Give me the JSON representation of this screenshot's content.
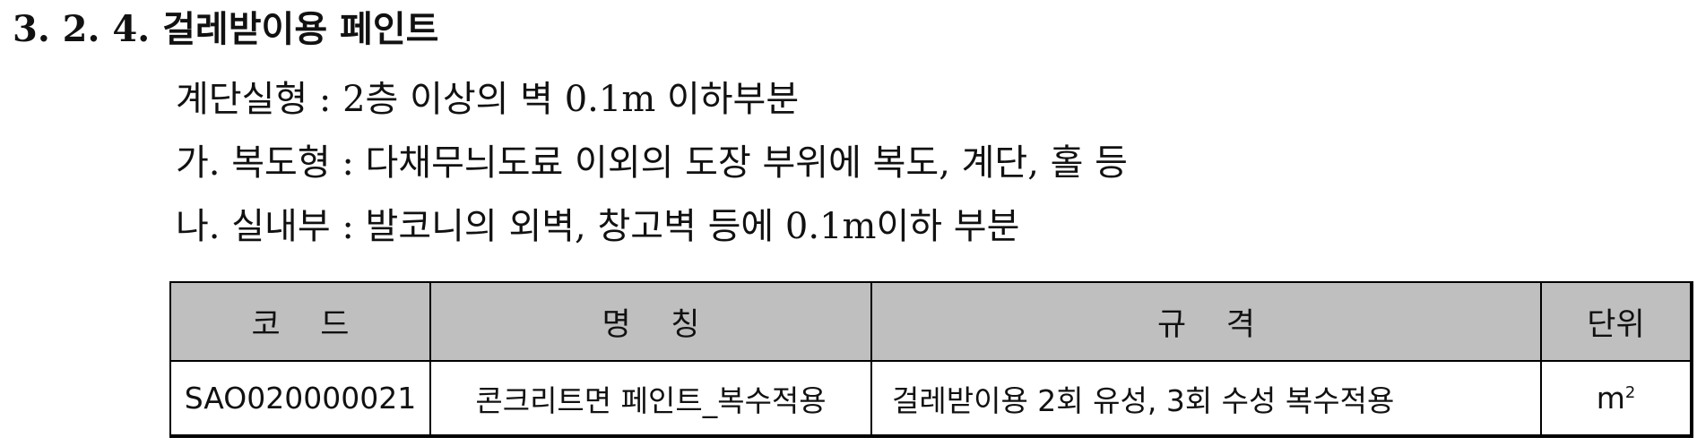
{
  "heading": {
    "number": "3. 2. 4.",
    "title": "걸레받이용 페인트"
  },
  "description": [
    "계단실형 : 2층 이상의 벽 0.1m 이하부분",
    "가. 복도형 : 다채무늬도료 이외의 도장 부위에 복도, 계단, 홀 등",
    "나. 실내부 : 발코니의 외벽, 창고벽 등에 0.1m이하 부분"
  ],
  "table": {
    "headers": {
      "code": "코    드",
      "name": "명    칭",
      "spec": "규    격",
      "unit": "단위"
    },
    "rows": [
      {
        "code": "SAO020000021",
        "name": "콘크리트면 페인트_복수적용",
        "spec": "걸레받이용 2회 유성, 3회 수성 복수적용",
        "unit_base": "m",
        "unit_exp": "2"
      }
    ]
  }
}
